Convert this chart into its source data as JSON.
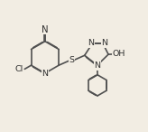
{
  "bg_color": "#f2ede3",
  "line_color": "#505050",
  "text_color": "#303030",
  "lw": 1.2,
  "fontsize": 6.8,
  "figsize": [
    1.64,
    1.46
  ],
  "dpi": 100,
  "xlim": [
    0,
    10
  ],
  "ylim": [
    0,
    9
  ]
}
